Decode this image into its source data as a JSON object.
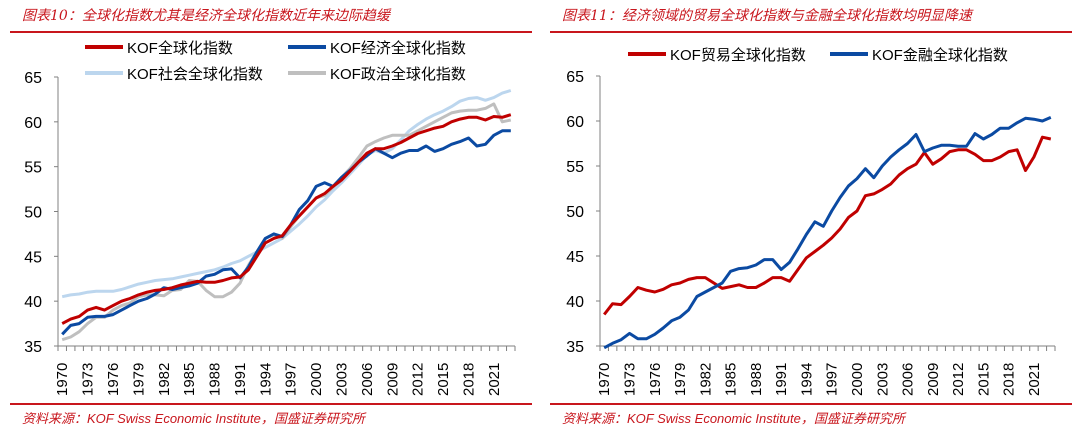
{
  "charts_meta": [
    {
      "title": "图表10：全球化指数尤其是经济全球化指数近年来边际趋缓",
      "source": "资料来源：KOF Swiss Economic Institute，国盛证券研究所"
    },
    {
      "title": "图表11：经济领域的贸易全球化指数与金融全球化指数均明显降速",
      "source": "资料来源：KOF Swiss Economic Institute，国盛证券研究所"
    }
  ],
  "colors": {
    "accent": "#c8161d",
    "red": "#c00000",
    "blue": "#0b4aa2",
    "lightblue": "#bcd6ee",
    "gray": "#bfbfbf"
  },
  "chart_data": [
    {
      "type": "line",
      "x_start": 1970,
      "x_end": 2023,
      "tick_labels": [
        "1970",
        "1973",
        "1976",
        "1979",
        "1982",
        "1985",
        "1988",
        "1991",
        "1994",
        "1997",
        "2000",
        "2003",
        "2006",
        "2009",
        "2012",
        "2015",
        "2018",
        "2021"
      ],
      "ylim": [
        35,
        65
      ],
      "yticks": [
        35,
        40,
        45,
        50,
        55,
        60,
        65
      ],
      "legend": "top",
      "grid": false,
      "series": [
        {
          "name": "KOF全球化指数",
          "color": "#c00000",
          "values": [
            37.5,
            38,
            38.3,
            39,
            39.3,
            39,
            39.5,
            40,
            40.3,
            40.7,
            41,
            41.2,
            41.3,
            41.5,
            41.8,
            42,
            42.2,
            42.1,
            42.1,
            42.3,
            42.6,
            42.7,
            43.5,
            45,
            46.5,
            47,
            47.3,
            48.5,
            49.5,
            50.5,
            51.5,
            52,
            52.8,
            53.5,
            54.5,
            55.5,
            56.5,
            57,
            57,
            57.3,
            57.7,
            58.2,
            58.7,
            59,
            59.3,
            59.5,
            60,
            60.3,
            60.5,
            60.5,
            60.2,
            60.6,
            60.5,
            60.8
          ]
        },
        {
          "name": "KOF经济全球化指数",
          "color": "#0b4aa2",
          "values": [
            36.3,
            37.3,
            37.5,
            38.2,
            38.3,
            38.3,
            38.5,
            39,
            39.5,
            40,
            40.3,
            40.8,
            41.5,
            41.3,
            41.5,
            41.7,
            42,
            42.8,
            43,
            43.5,
            43.6,
            42.6,
            43.8,
            45.5,
            47,
            47.5,
            47.2,
            48.5,
            50.2,
            51.2,
            52.8,
            53.2,
            52.8,
            53.8,
            54.6,
            55.5,
            56.2,
            57,
            56.5,
            56,
            56.5,
            56.8,
            56.8,
            57.3,
            56.7,
            57,
            57.5,
            57.8,
            58.2,
            57.3,
            57.5,
            58.5,
            59,
            59
          ]
        },
        {
          "name": "KOF社会全球化指数",
          "color": "#bcd6ee",
          "values": [
            40.5,
            40.7,
            40.8,
            41,
            41.1,
            41.1,
            41.1,
            41.3,
            41.6,
            41.9,
            42.1,
            42.3,
            42.4,
            42.5,
            42.7,
            42.9,
            43.1,
            43.3,
            43.5,
            43.8,
            44.2,
            44.5,
            45,
            45.5,
            46,
            46.5,
            47,
            47.8,
            48.6,
            49.5,
            50.5,
            51.3,
            52.3,
            53.2,
            54.2,
            55.2,
            56.3,
            56.8,
            56.5,
            57,
            58,
            59,
            59.7,
            60.3,
            60.8,
            61.2,
            61.7,
            62.3,
            62.6,
            62.7,
            62.4,
            62.7,
            63.2,
            63.5
          ]
        },
        {
          "name": "KOF政治全球化指数",
          "color": "#bfbfbf",
          "values": [
            35.7,
            36,
            36.6,
            37.5,
            38.2,
            38.2,
            39,
            39.5,
            39.8,
            40.5,
            40.7,
            40.7,
            40.6,
            41.2,
            41.3,
            42.3,
            42.2,
            41.2,
            40.5,
            40.5,
            41,
            42,
            44,
            45.5,
            47,
            47.4,
            47,
            48.3,
            49.5,
            50.5,
            51.5,
            51.8,
            52.7,
            53.8,
            54.8,
            56,
            57.3,
            57.8,
            58.2,
            58.5,
            58.5,
            58.5,
            59,
            59.5,
            60,
            60.5,
            61,
            61.2,
            61.3,
            61.3,
            61.5,
            62,
            60,
            60.2
          ]
        }
      ]
    },
    {
      "type": "line",
      "x_start": 1970,
      "x_end": 2023,
      "tick_labels": [
        "1970",
        "1973",
        "1976",
        "1979",
        "1982",
        "1985",
        "1988",
        "1991",
        "1994",
        "1997",
        "2000",
        "2003",
        "2006",
        "2009",
        "2012",
        "2015",
        "2018",
        "2021"
      ],
      "ylim": [
        35,
        65
      ],
      "yticks": [
        35,
        40,
        45,
        50,
        55,
        60,
        65
      ],
      "legend": "top",
      "grid": false,
      "series": [
        {
          "name": "KOF贸易全球化指数",
          "color": "#c00000",
          "values": [
            38.5,
            39.7,
            39.6,
            40.5,
            41.5,
            41.2,
            41,
            41.3,
            41.8,
            42,
            42.4,
            42.6,
            42.6,
            42,
            41.4,
            41.6,
            41.8,
            41.5,
            41.5,
            42,
            42.6,
            42.6,
            42.2,
            43.5,
            44.8,
            45.5,
            46.2,
            47,
            48,
            49.3,
            50,
            51.7,
            51.9,
            52.4,
            53,
            54,
            54.7,
            55.2,
            56.5,
            55.2,
            55.8,
            56.6,
            56.8,
            56.8,
            56.3,
            55.6,
            55.6,
            56,
            56.6,
            56.8,
            54.5,
            56,
            58.2,
            58
          ]
        },
        {
          "name": "KOF金融全球化指数",
          "color": "#0b4aa2",
          "values": [
            34.8,
            35.3,
            35.7,
            36.4,
            35.8,
            35.8,
            36.3,
            37,
            37.8,
            38.2,
            39,
            40.5,
            41,
            41.5,
            42,
            43.3,
            43.6,
            43.7,
            44,
            44.6,
            44.6,
            43.5,
            44.3,
            45.8,
            47.4,
            48.8,
            48.3,
            50,
            51.5,
            52.8,
            53.6,
            54.7,
            53.7,
            55,
            56,
            56.8,
            57.5,
            58.5,
            56.6,
            57,
            57.3,
            57.3,
            57.2,
            57.2,
            58.6,
            58,
            58.5,
            59.2,
            59.2,
            59.8,
            60.3,
            60.2,
            60,
            60.4
          ]
        }
      ]
    }
  ]
}
